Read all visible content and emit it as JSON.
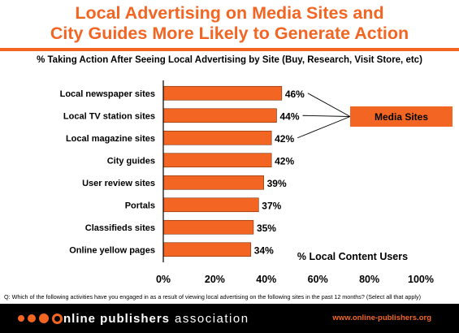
{
  "header": {
    "title_line1": "Local Advertising on Media Sites and",
    "title_line2": "City Guides More Likely to Generate Action",
    "accent_color": "#f26522"
  },
  "footer": {
    "question": "Q: Which of the following activities have you engaged in as a result of viewing local advertising on the following sites in the past 12 months? (Select all that apply)",
    "logo_word1": "nline publishers",
    "logo_word2": "association",
    "url": "www.online-publishers.org"
  },
  "chart_data": {
    "type": "bar",
    "orientation": "horizontal",
    "title": "% Taking Action After Seeing Local Advertising by Site (Buy, Research, Visit Store, etc)",
    "xlabel": "% Local Content Users",
    "categories": [
      "Local newspaper sites",
      "Local TV station sites",
      "Local magazine sites",
      "City guides",
      "User review sites",
      "Portals",
      "Classifieds sites",
      "Online yellow pages"
    ],
    "values": [
      46,
      44,
      42,
      42,
      39,
      37,
      35,
      34
    ],
    "value_labels": [
      "46%",
      "44%",
      "42%",
      "42%",
      "39%",
      "37%",
      "35%",
      "34%"
    ],
    "xlim": [
      0,
      100
    ],
    "xticks": [
      "0%",
      "20%",
      "40%",
      "60%",
      "80%",
      "100%"
    ],
    "bar_color": "#f26522",
    "grid": false,
    "callout": {
      "label": "Media Sites",
      "targets": [
        "Local newspaper sites",
        "Local TV station sites",
        "Local magazine sites"
      ]
    }
  }
}
